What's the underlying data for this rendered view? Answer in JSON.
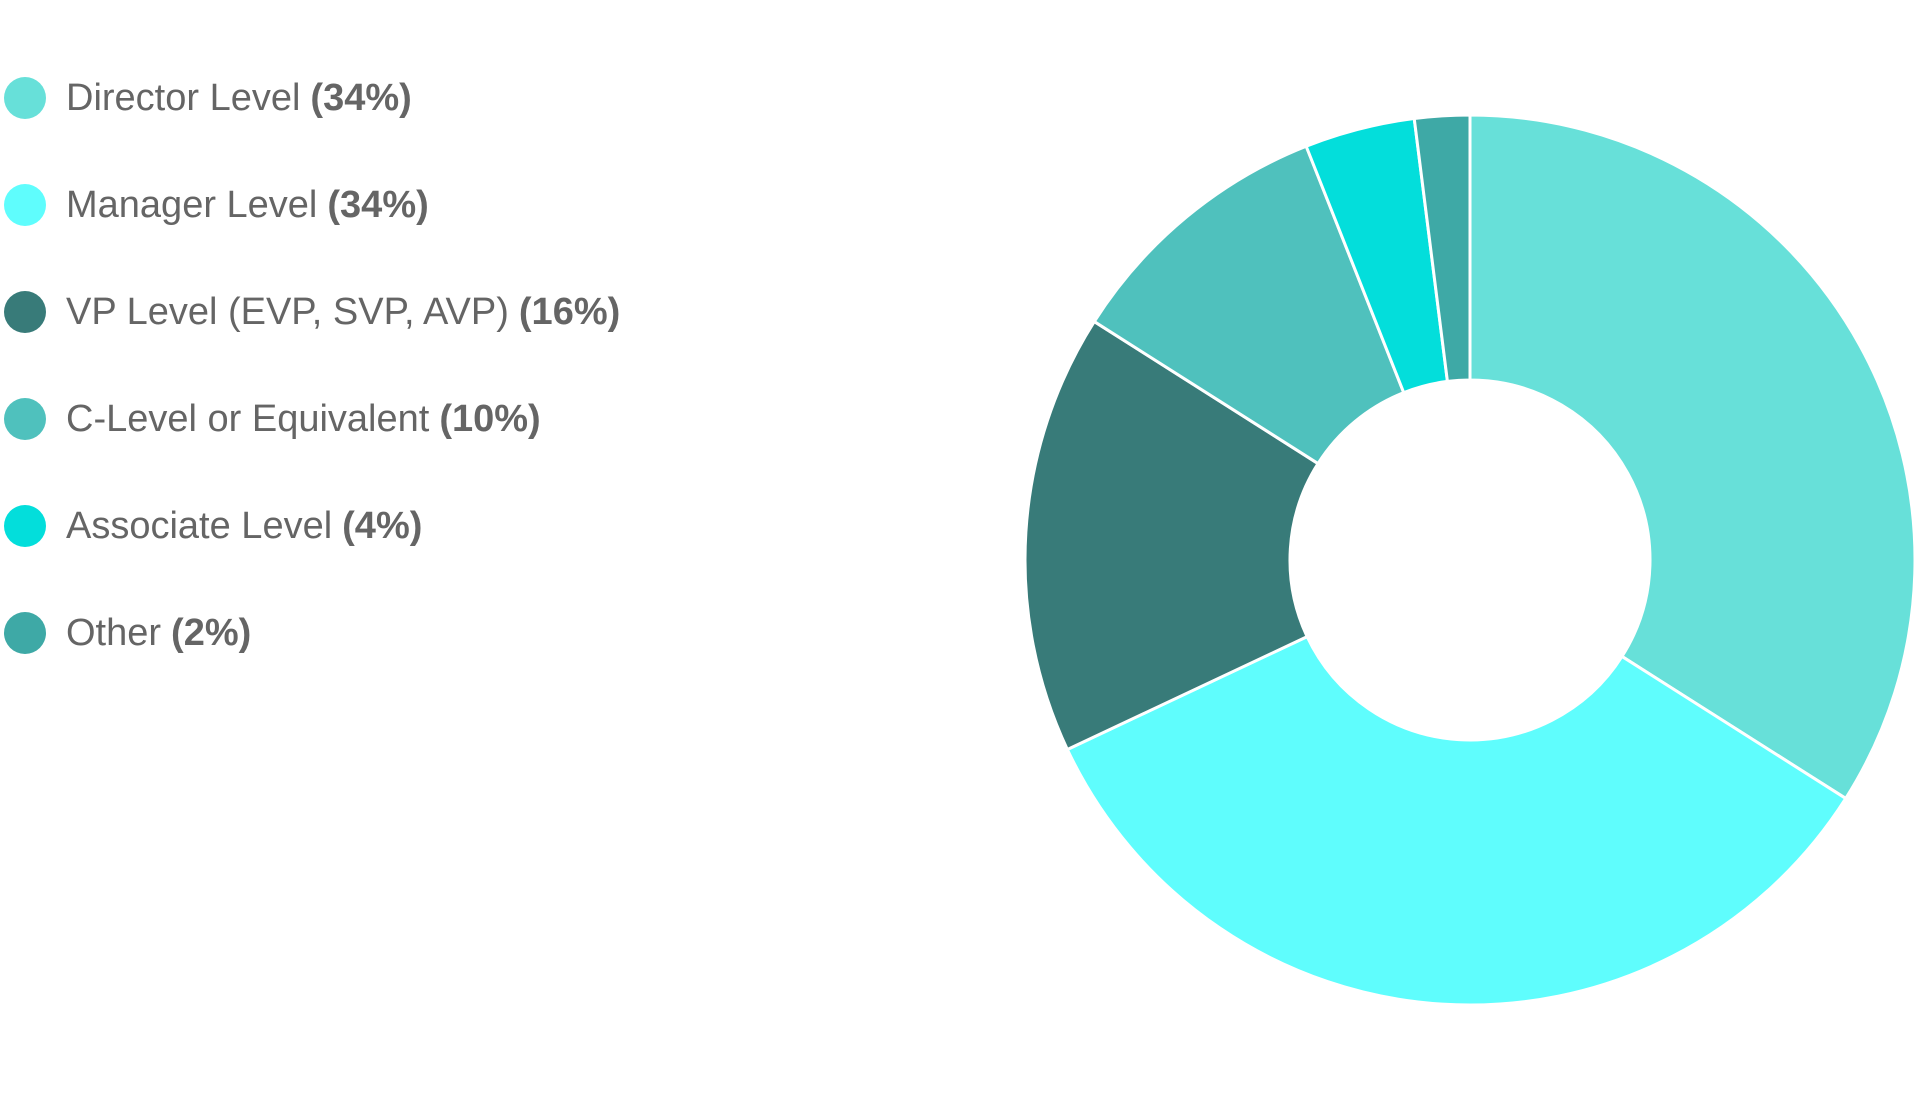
{
  "chart_data": {
    "type": "pie",
    "style": "donut",
    "legend_position": "left",
    "slices": [
      {
        "label": "Director Level",
        "percent_label": "(34%)",
        "value": 34,
        "color": "#67e0d9"
      },
      {
        "label": "Manager Level",
        "percent_label": "(34%)",
        "value": 34,
        "color": "#5ffdfd"
      },
      {
        "label": "VP Level (EVP, SVP, AVP)",
        "percent_label": "(16%)",
        "value": 16,
        "color": "#387b79"
      },
      {
        "label": "C-Level or Equivalent",
        "percent_label": "(10%)",
        "value": 10,
        "color": "#4fc1bd"
      },
      {
        "label": "Associate Level",
        "percent_label": "(4%)",
        "value": 4,
        "color": "#03dedb"
      },
      {
        "label": "Other",
        "percent_label": "(2%)",
        "value": 2,
        "color": "#3ea9a6"
      }
    ]
  }
}
